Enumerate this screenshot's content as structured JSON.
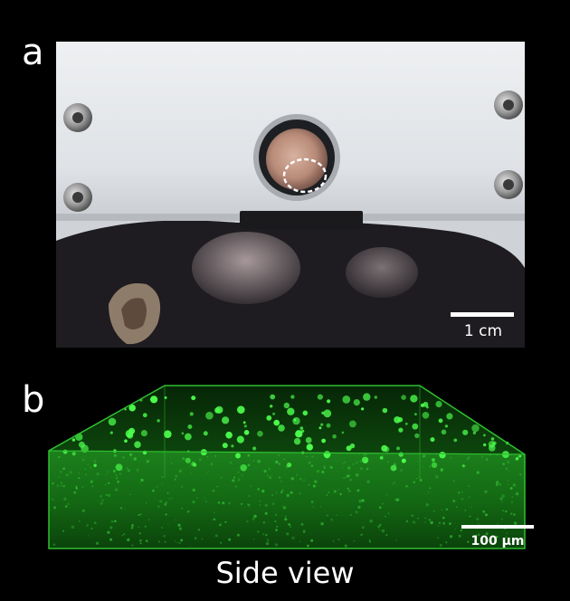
{
  "panel_a": {
    "label": "a",
    "scale_bar_label": "1 cm"
  },
  "panel_b": {
    "label": "b",
    "scale_bar_label": "100 μm",
    "caption": "Side view"
  }
}
